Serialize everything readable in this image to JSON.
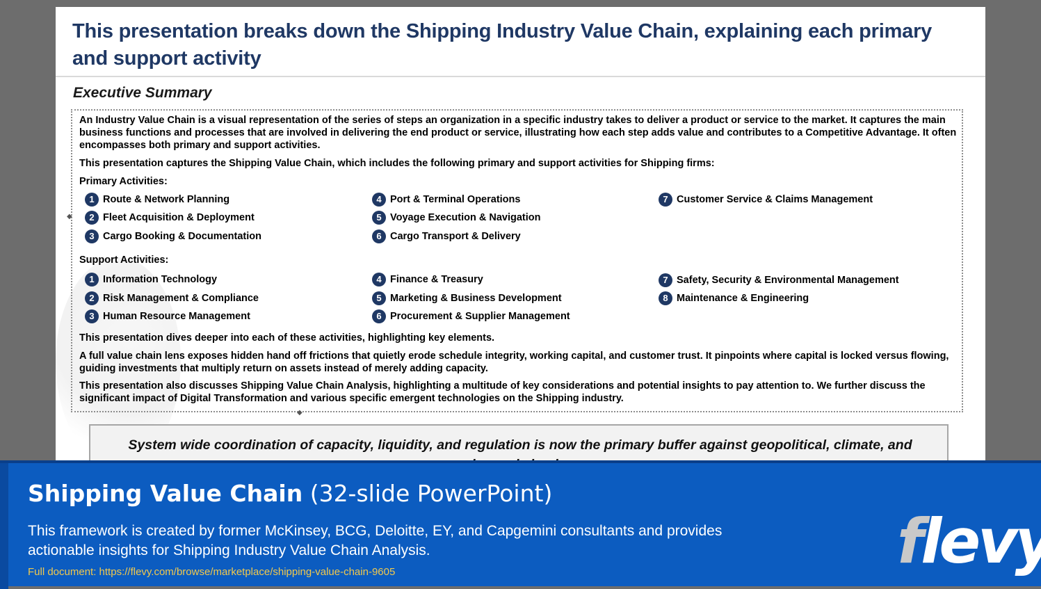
{
  "slide": {
    "title": "This presentation breaks down the Shipping Industry Value Chain, explaining each primary and support activity",
    "section_heading": "Executive Summary",
    "intro_paragraph": "An Industry Value Chain is a visual representation of the series of steps an organization in a specific industry takes to deliver a product or service to the market. It captures the main business functions and processes that are involved in delivering the end product or service, illustrating how each step adds value and contributes to a Competitive Advantage. It often encompasses both primary and support activities.",
    "captures_paragraph": "This presentation captures the Shipping Value Chain, which includes the following primary and support activities for Shipping firms:",
    "primary_label": "Primary Activities:",
    "primary_activities": [
      {
        "num": "1",
        "label": "Route & Network Planning"
      },
      {
        "num": "2",
        "label": "Fleet Acquisition & Deployment"
      },
      {
        "num": "3",
        "label": "Cargo Booking & Documentation"
      },
      {
        "num": "4",
        "label": "Port & Terminal Operations"
      },
      {
        "num": "5",
        "label": "Voyage Execution & Navigation"
      },
      {
        "num": "6",
        "label": "Cargo Transport & Delivery"
      },
      {
        "num": "7",
        "label": "Customer Service & Claims Management"
      }
    ],
    "support_label": "Support Activities:",
    "support_activities": [
      {
        "num": "1",
        "label": "Information Technology"
      },
      {
        "num": "2",
        "label": "Risk Management & Compliance"
      },
      {
        "num": "3",
        "label": "Human Resource Management"
      },
      {
        "num": "4",
        "label": "Finance & Treasury"
      },
      {
        "num": "5",
        "label": "Marketing & Business Development"
      },
      {
        "num": "6",
        "label": "Procurement & Supplier Management"
      },
      {
        "num": "7",
        "label": "Safety, Security & Environmental Management"
      },
      {
        "num": "8",
        "label": "Maintenance & Engineering"
      }
    ],
    "dives_paragraph": "This presentation dives deeper into each of these activities, highlighting key elements.",
    "lens_paragraph": "A full value chain lens exposes hidden hand off frictions that quietly erode schedule integrity, working capital, and customer trust.  It pinpoints where capital is locked versus flowing, guiding investments that multiply return on assets instead of merely adding capacity.",
    "analysis_paragraph": "This presentation also discusses Shipping Value Chain Analysis, highlighting a multitude of key considerations and potential insights to pay attention to.  We further discuss the significant impact of Digital Transformation and various specific emergent technologies on the Shipping industry.",
    "quote": "System wide coordination of capacity, liquidity, and regulation is now the primary buffer against geopolitical, climate, and demand shocks."
  },
  "banner": {
    "title_bold": "Shipping Value Chain",
    "title_rest": " (32-slide PowerPoint)",
    "description": "This framework is created by former McKinsey, BCG, Deloitte, EY, and Capgemini consultants and provides actionable insights for Shipping Industry Value Chain Analysis.",
    "link": "Full document: https://flevy.com/browse/marketplace/shipping-value-chain-9605",
    "logo_first": "f",
    "logo_rest": "levy"
  },
  "colors": {
    "title": "#1f3864",
    "number_badge": "#1f3864",
    "banner": "#0c5cc0",
    "link": "#f2c94c"
  }
}
